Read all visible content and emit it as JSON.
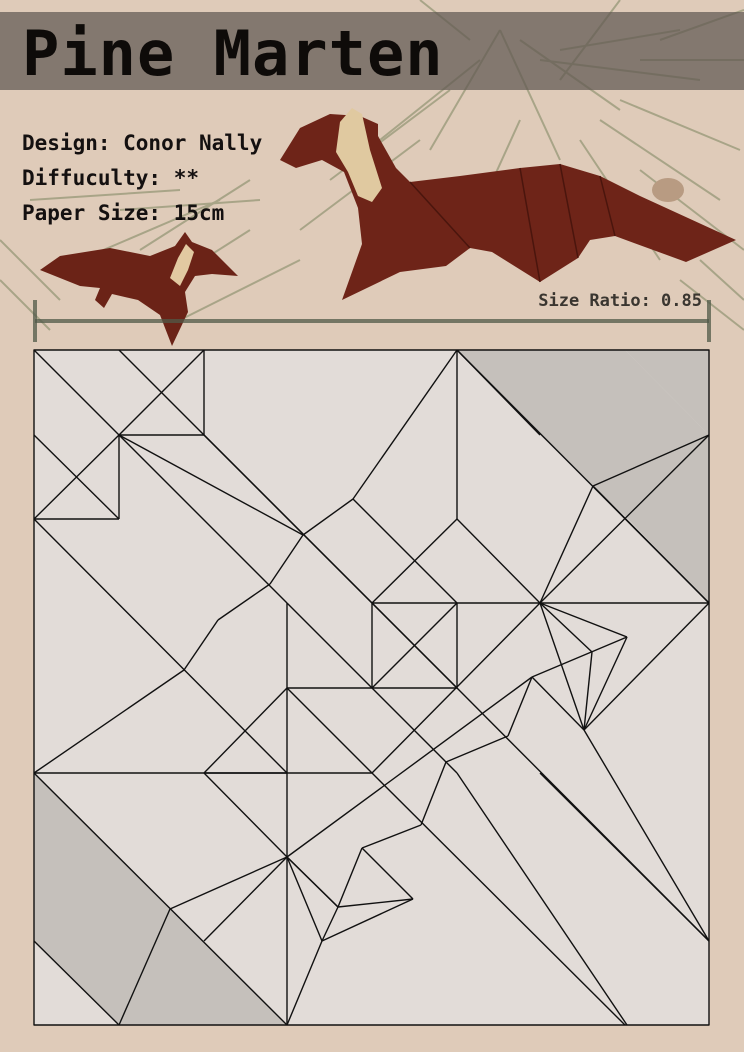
{
  "title": "Pine Marten",
  "info": {
    "design": "Design: Conor Nally",
    "difficulty": "Diffuculty: **",
    "paper_size": "Paper Size: 15cm"
  },
  "size_ratio": "Size Ratio: 0.85",
  "colors": {
    "background": "#dfcbb9",
    "title_bar": "#5f5852",
    "paper": "#e2dcd8",
    "shade": "#c5c0bb",
    "fur": "#6e2418",
    "fur_underside": "#e0c9a0",
    "pine_needles": "#6f7a55"
  }
}
